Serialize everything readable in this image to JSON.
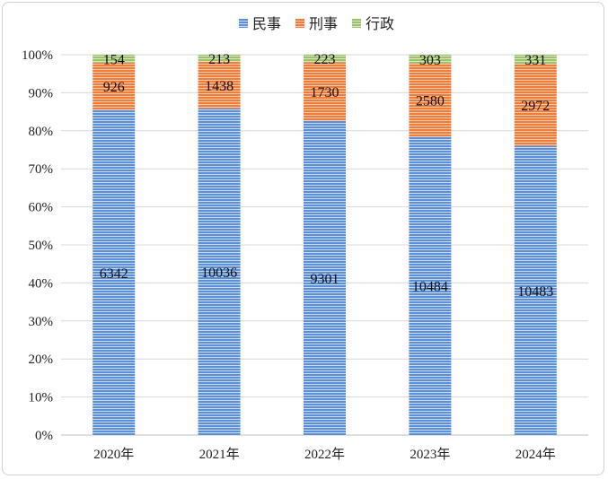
{
  "chart_data": {
    "type": "bar",
    "stacked": "percent",
    "title": "",
    "xlabel": "",
    "ylabel": "",
    "categories": [
      "2020年",
      "2021年",
      "2022年",
      "2023年",
      "2024年"
    ],
    "series": [
      {
        "name": "民事",
        "values": [
          6342,
          10036,
          9301,
          10484,
          10483
        ],
        "color": "#5b8fd6",
        "stripe": "#c9dbf3"
      },
      {
        "name": "刑事",
        "values": [
          926,
          1438,
          1730,
          2580,
          2972
        ],
        "color": "#ee7d3c",
        "stripe": "#f8c9a8"
      },
      {
        "name": "行政",
        "values": [
          154,
          213,
          223,
          303,
          331
        ],
        "color": "#9dc06a",
        "stripe": "#d6e7bf"
      }
    ],
    "ylim": [
      0,
      100
    ],
    "yticks": [
      "0%",
      "10%",
      "20%",
      "30%",
      "40%",
      "50%",
      "60%",
      "70%",
      "80%",
      "90%",
      "100%"
    ],
    "grid": true,
    "legend_position": "top"
  }
}
